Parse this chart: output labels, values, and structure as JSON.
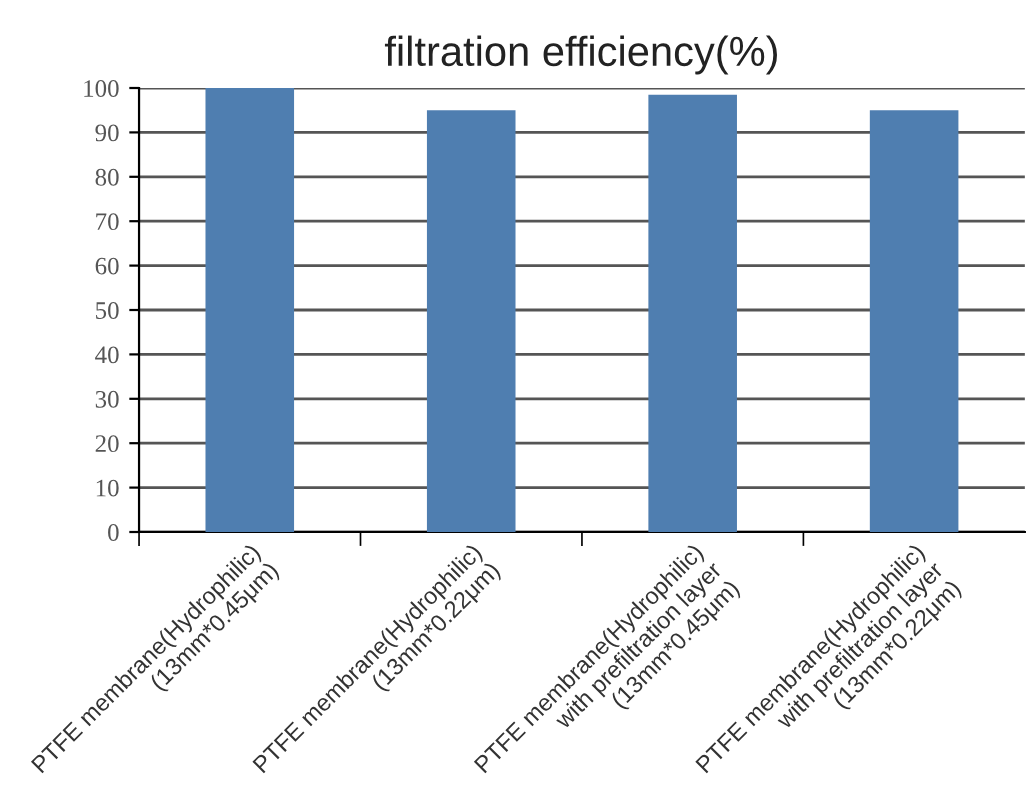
{
  "chart_data": {
    "type": "bar",
    "title": "filtration efficiency(%)",
    "categories": [
      "PTFE membrane(Hydrophilic)\n(13mm*0.45μm)",
      "PTFE membrane(Hydrophilic)\n(13mm*0.22μm)",
      "PTFE membrane(Hydrophilic)\nwith prefiltration layer\n(13mm*0.45μm)",
      "PTFE membrane(Hydrophilic)\nwith prefiltration layer\n(13mm*0.22μm)"
    ],
    "values": [
      100,
      95,
      98.5,
      95
    ],
    "color": "#4f7eb0",
    "ylim": [
      0,
      100
    ],
    "yticks": [
      0,
      10,
      20,
      30,
      40,
      50,
      60,
      70,
      80,
      90,
      100
    ],
    "grid": "y",
    "legend": false
  }
}
